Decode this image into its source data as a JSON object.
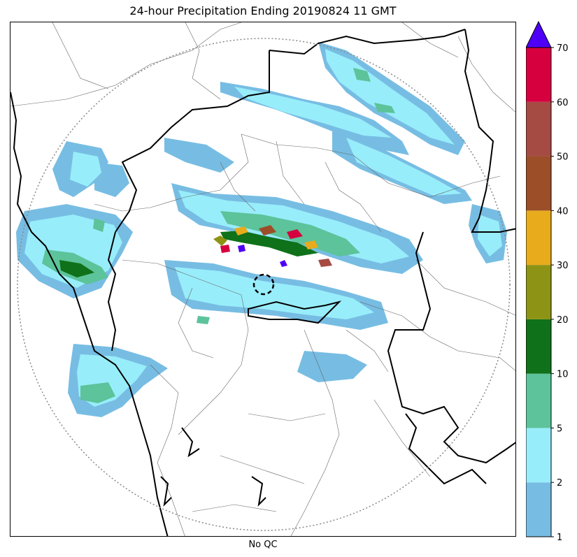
{
  "title": "24-hour Precipitation Ending 20190824 11 GMT",
  "footer": "No QC",
  "colorbar": {
    "levels": [
      "1",
      "2",
      "5",
      "10",
      "20",
      "30",
      "40",
      "50",
      "60",
      "70"
    ],
    "colors": [
      "#77bde3",
      "#98edfa",
      "#5cc39a",
      "#0f7119",
      "#8d9314",
      "#e7ab1c",
      "#9c4e28",
      "#a64b44",
      "#d6003f"
    ],
    "extend_color": "#4e00f6"
  },
  "map": {
    "range_ring_color": "#888888",
    "border_color": "#000000",
    "line_color": "#666666"
  }
}
